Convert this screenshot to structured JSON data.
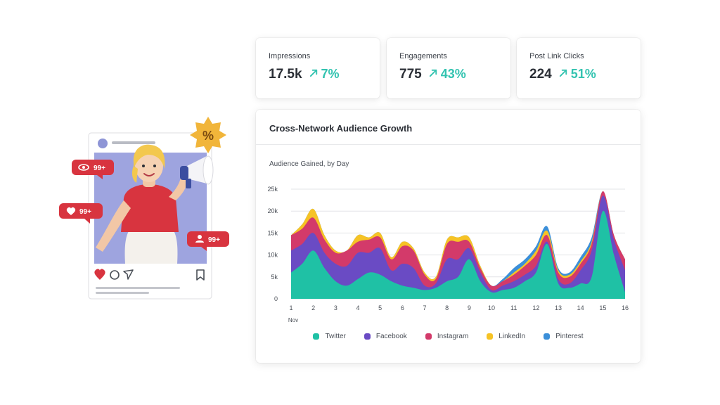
{
  "kpis": [
    {
      "label": "Impressions",
      "value": "17.5k",
      "change": "7%"
    },
    {
      "label": "Engagements",
      "value": "775",
      "change": "43%"
    },
    {
      "label": "Post Link Clicks",
      "value": "224",
      "change": "51%"
    }
  ],
  "illustration": {
    "notifications": [
      "99+",
      "99+",
      "99+"
    ],
    "icons": [
      "eye-icon",
      "heart-icon",
      "user-icon",
      "megaphone-icon",
      "percent-badge-icon",
      "comment-icon",
      "send-icon",
      "bookmark-icon"
    ]
  },
  "chart_data": {
    "type": "area",
    "stacked": true,
    "title": "Cross-Network Audience Growth",
    "subtitle": "Audience Gained, by Day",
    "xlabel": "Nov",
    "ylabel": "",
    "ylim": [
      0,
      25000
    ],
    "y_ticks": [
      0,
      5000,
      10000,
      15000,
      20000,
      25000
    ],
    "y_tick_labels": [
      "0",
      "5k",
      "10k",
      "15k",
      "20k",
      "25k"
    ],
    "x_ticks": [
      1,
      2,
      3,
      4,
      5,
      6,
      7,
      8,
      9,
      10,
      11,
      12,
      13,
      14,
      15,
      16
    ],
    "x_tick_labels": [
      "1",
      "2",
      "3",
      "4",
      "5",
      "6",
      "7",
      "8",
      "9",
      "10",
      "11",
      "12",
      "13",
      "14",
      "15",
      "16"
    ],
    "grid": true,
    "legend_position": "bottom",
    "x": [
      1,
      1.5,
      2,
      2.5,
      3,
      3.5,
      4,
      4.5,
      5,
      5.5,
      6,
      6.5,
      7,
      7.5,
      8,
      8.5,
      9,
      9.5,
      10,
      10.5,
      11,
      11.5,
      12,
      12.5,
      13,
      13.5,
      14,
      14.5,
      15,
      15.5,
      16
    ],
    "series": [
      {
        "name": "Twitter",
        "color": "#1fc1a5",
        "values": [
          6000,
          8000,
          11000,
          7000,
          4000,
          3000,
          4500,
          6000,
          5500,
          4000,
          3000,
          2500,
          2000,
          2500,
          4000,
          5000,
          9000,
          4000,
          1500,
          2000,
          2500,
          4000,
          6000,
          12500,
          3500,
          2500,
          3500,
          5000,
          20000,
          10000,
          1500
        ]
      },
      {
        "name": "Facebook",
        "color": "#6a4bc4",
        "values": [
          5000,
          4500,
          4000,
          3500,
          4000,
          4500,
          6000,
          4500,
          6000,
          2500,
          5000,
          4500,
          1000,
          1000,
          5000,
          4000,
          2500,
          2000,
          500,
          1000,
          1500,
          1500,
          1500,
          500,
          1000,
          1000,
          3000,
          6000,
          3500,
          3500,
          5000
        ]
      },
      {
        "name": "Instagram",
        "color": "#d33a6a",
        "values": [
          3500,
          3500,
          3500,
          3000,
          2500,
          3500,
          2500,
          3000,
          2500,
          2500,
          4000,
          4000,
          2500,
          1000,
          3500,
          4000,
          1500,
          1000,
          1000,
          1000,
          1500,
          2000,
          2500,
          1500,
          1500,
          1500,
          1500,
          1500,
          1000,
          1000,
          2500
        ]
      },
      {
        "name": "LinkedIn",
        "color": "#f6c325",
        "values": [
          0,
          1000,
          2000,
          1000,
          500,
          0,
          1500,
          500,
          1000,
          500,
          1000,
          500,
          500,
          500,
          1000,
          1000,
          1000,
          500,
          0,
          0,
          500,
          500,
          1000,
          1000,
          500,
          500,
          500,
          500,
          0,
          0,
          0
        ]
      },
      {
        "name": "Pinterest",
        "color": "#3b8fd9",
        "values": [
          0,
          0,
          0,
          0,
          0,
          0,
          0,
          0,
          0,
          0,
          0,
          0,
          0,
          0,
          0,
          0,
          0,
          0,
          0,
          500,
          1000,
          1000,
          1000,
          1000,
          500,
          500,
          1000,
          1000,
          0,
          0,
          0
        ]
      }
    ]
  }
}
